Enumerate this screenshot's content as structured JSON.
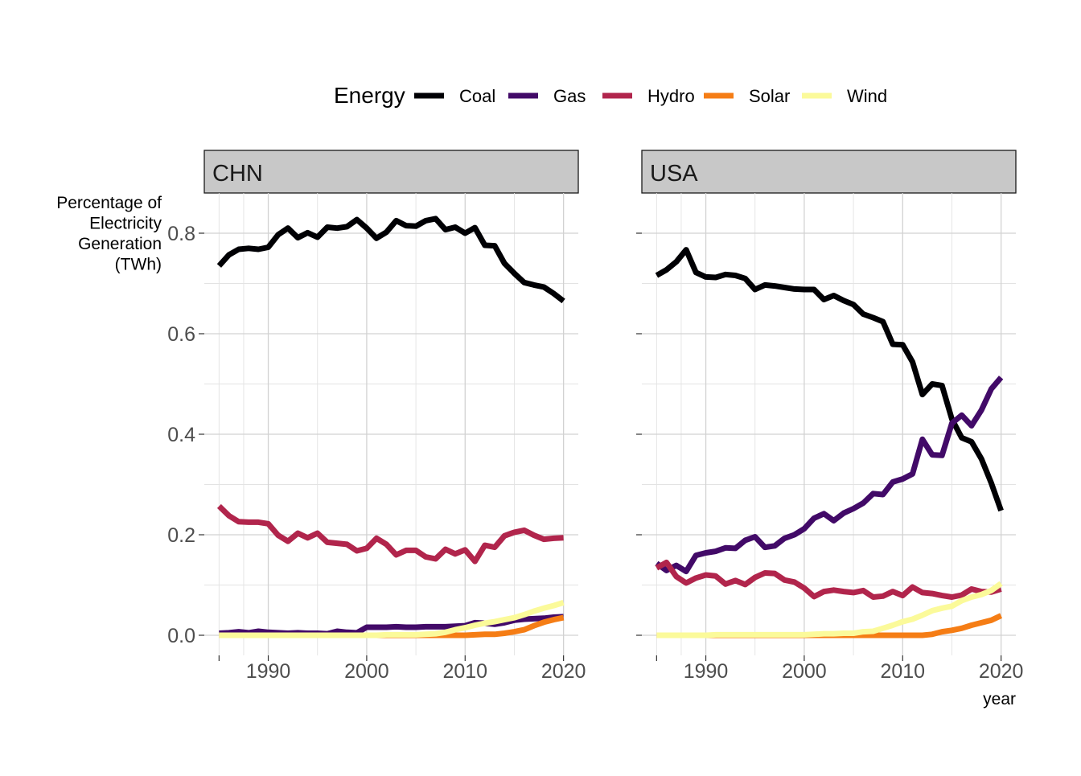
{
  "chart_data": {
    "type": "line",
    "legend": {
      "title": "Energy",
      "position": "top",
      "entries": [
        {
          "name": "Coal",
          "color": "#000004"
        },
        {
          "name": "Gas",
          "color": "#420a68"
        },
        {
          "name": "Hydro",
          "color": "#b1254c"
        },
        {
          "name": "Solar",
          "color": "#f57d15"
        },
        {
          "name": "Wind",
          "color": "#fbfa9a"
        }
      ]
    },
    "ylabel": [
      "Percentage of",
      "Electricity",
      "Generation",
      "(TWh)"
    ],
    "xlabel": "year",
    "xlim": [
      1983.5,
      2021.5
    ],
    "ylim": [
      -0.04,
      0.88
    ],
    "x_ticks": [
      1990,
      2000,
      2010,
      2020
    ],
    "x_tick_labels": [
      "1990",
      "2000",
      "2010",
      "2020"
    ],
    "y_ticks": [
      0.0,
      0.2,
      0.4,
      0.6,
      0.8
    ],
    "y_tick_labels": [
      "0.0",
      "0.2",
      "0.4",
      "0.6",
      "0.8"
    ],
    "grid": true,
    "x": [
      1985,
      1986,
      1987,
      1988,
      1989,
      1990,
      1991,
      1992,
      1993,
      1994,
      1995,
      1996,
      1997,
      1998,
      1999,
      2000,
      2001,
      2002,
      2003,
      2004,
      2005,
      2006,
      2007,
      2008,
      2009,
      2010,
      2011,
      2012,
      2013,
      2014,
      2015,
      2016,
      2017,
      2018,
      2019,
      2020
    ],
    "panels": [
      {
        "label": "CHN",
        "series": [
          {
            "name": "Coal",
            "values": [
              0.735,
              0.757,
              0.768,
              0.77,
              0.768,
              0.772,
              0.797,
              0.81,
              0.791,
              0.801,
              0.792,
              0.812,
              0.81,
              0.813,
              0.827,
              0.81,
              0.79,
              0.802,
              0.825,
              0.815,
              0.814,
              0.825,
              0.829,
              0.807,
              0.812,
              0.8,
              0.811,
              0.776,
              0.775,
              0.74,
              0.72,
              0.702,
              0.697,
              0.693,
              0.68,
              0.665
            ]
          },
          {
            "name": "Gas",
            "values": [
              0.004,
              0.005,
              0.007,
              0.005,
              0.008,
              0.006,
              0.005,
              0.004,
              0.005,
              0.004,
              0.004,
              0.003,
              0.008,
              0.006,
              0.005,
              0.016,
              0.016,
              0.016,
              0.017,
              0.016,
              0.016,
              0.017,
              0.017,
              0.017,
              0.018,
              0.019,
              0.025,
              0.024,
              0.022,
              0.025,
              0.03,
              0.032,
              0.033,
              0.034,
              0.036,
              0.037
            ]
          },
          {
            "name": "Hydro",
            "values": [
              0.257,
              0.238,
              0.226,
              0.225,
              0.225,
              0.222,
              0.199,
              0.187,
              0.203,
              0.194,
              0.203,
              0.185,
              0.183,
              0.181,
              0.168,
              0.173,
              0.193,
              0.181,
              0.16,
              0.169,
              0.169,
              0.156,
              0.152,
              0.171,
              0.162,
              0.17,
              0.147,
              0.179,
              0.175,
              0.198,
              0.205,
              0.209,
              0.199,
              0.191,
              0.193,
              0.194
            ]
          },
          {
            "name": "Solar",
            "values": [
              0.0,
              0.0,
              0.0,
              0.0,
              0.0,
              0.0,
              0.0,
              0.0,
              0.0,
              0.0,
              0.0,
              0.0,
              0.0,
              0.0,
              0.0,
              0.0,
              0.0,
              0.0,
              0.0,
              0.0,
              0.0,
              0.0,
              0.0,
              0.0,
              0.0,
              0.0,
              0.001,
              0.002,
              0.002,
              0.004,
              0.007,
              0.011,
              0.019,
              0.026,
              0.031,
              0.035
            ]
          },
          {
            "name": "Wind",
            "values": [
              0.0,
              0.0,
              0.0,
              0.0,
              0.0,
              0.0,
              0.0,
              0.0,
              0.0,
              0.0,
              0.0,
              0.0,
              0.0,
              0.0,
              0.0,
              0.0,
              0.0,
              0.001,
              0.001,
              0.001,
              0.001,
              0.002,
              0.003,
              0.006,
              0.011,
              0.015,
              0.02,
              0.024,
              0.027,
              0.031,
              0.035,
              0.041,
              0.048,
              0.054,
              0.059,
              0.065
            ]
          }
        ]
      },
      {
        "label": "USA",
        "series": [
          {
            "name": "Coal",
            "values": [
              0.716,
              0.727,
              0.743,
              0.767,
              0.722,
              0.713,
              0.712,
              0.718,
              0.716,
              0.71,
              0.688,
              0.697,
              0.695,
              0.692,
              0.689,
              0.688,
              0.688,
              0.668,
              0.676,
              0.666,
              0.658,
              0.639,
              0.632,
              0.624,
              0.579,
              0.578,
              0.544,
              0.479,
              0.5,
              0.497,
              0.43,
              0.393,
              0.385,
              0.351,
              0.303,
              0.248
            ]
          },
          {
            "name": "Gas",
            "values": [
              0.143,
              0.129,
              0.139,
              0.127,
              0.159,
              0.164,
              0.167,
              0.174,
              0.173,
              0.189,
              0.196,
              0.175,
              0.178,
              0.193,
              0.2,
              0.212,
              0.233,
              0.242,
              0.228,
              0.243,
              0.252,
              0.263,
              0.282,
              0.28,
              0.305,
              0.311,
              0.321,
              0.39,
              0.359,
              0.358,
              0.422,
              0.438,
              0.417,
              0.448,
              0.49,
              0.513
            ]
          },
          {
            "name": "Hydro",
            "values": [
              0.134,
              0.145,
              0.117,
              0.104,
              0.114,
              0.12,
              0.118,
              0.102,
              0.109,
              0.101,
              0.115,
              0.124,
              0.123,
              0.11,
              0.106,
              0.094,
              0.077,
              0.087,
              0.09,
              0.087,
              0.085,
              0.089,
              0.076,
              0.078,
              0.087,
              0.079,
              0.096,
              0.085,
              0.083,
              0.079,
              0.076,
              0.08,
              0.092,
              0.087,
              0.086,
              0.092
            ]
          },
          {
            "name": "Solar",
            "values": [
              0.0,
              0.0,
              0.0,
              0.0,
              0.0,
              0.0,
              0.0,
              0.0,
              0.0,
              0.0,
              0.0,
              0.0,
              0.0,
              0.0,
              0.0,
              0.0,
              0.0,
              0.0,
              0.0,
              0.0,
              0.0,
              0.0,
              0.0,
              0.0,
              0.0,
              0.0,
              0.0,
              0.0,
              0.002,
              0.007,
              0.01,
              0.014,
              0.02,
              0.025,
              0.03,
              0.039
            ]
          },
          {
            "name": "Wind",
            "values": [
              0.0,
              0.0,
              0.0,
              0.0,
              0.0,
              0.0,
              0.001,
              0.001,
              0.001,
              0.001,
              0.001,
              0.001,
              0.001,
              0.001,
              0.001,
              0.001,
              0.002,
              0.003,
              0.003,
              0.004,
              0.004,
              0.007,
              0.008,
              0.014,
              0.02,
              0.027,
              0.032,
              0.04,
              0.049,
              0.054,
              0.058,
              0.069,
              0.076,
              0.081,
              0.089,
              0.103
            ]
          }
        ]
      }
    ]
  }
}
